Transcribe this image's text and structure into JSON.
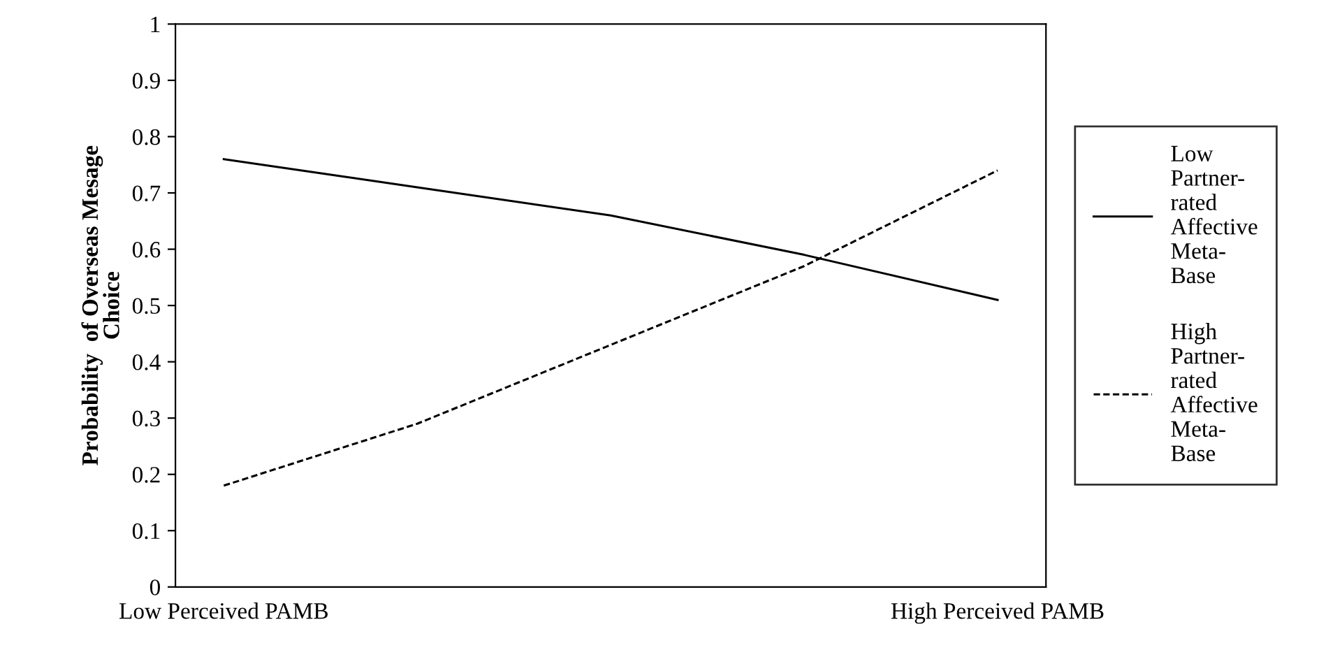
{
  "chart_data": {
    "type": "line",
    "ylabel": "Probability  of Overseas Mesage\nChoice",
    "categories": [
      "Low Perceived PAMB",
      null,
      null,
      null,
      "High Perceived PAMB"
    ],
    "ylim": [
      0,
      1
    ],
    "yticks": [
      0,
      0.1,
      0.2,
      0.3,
      0.4,
      0.5,
      0.6,
      0.7,
      0.8,
      0.9,
      1
    ],
    "legend": "right",
    "series": [
      {
        "name": "Low\nPartner-\nrated\nAffective\nMeta-\nBase",
        "color": "#000000",
        "line_style": "solid",
        "values": [
          0.76,
          0.71,
          0.66,
          0.59,
          0.51
        ]
      },
      {
        "name": "High\nPartner-\nrated\nAffective\nMeta-\nBase",
        "color": "#000000",
        "line_style": "dashed",
        "values": [
          0.18,
          0.29,
          0.43,
          0.57,
          0.74
        ]
      }
    ]
  }
}
